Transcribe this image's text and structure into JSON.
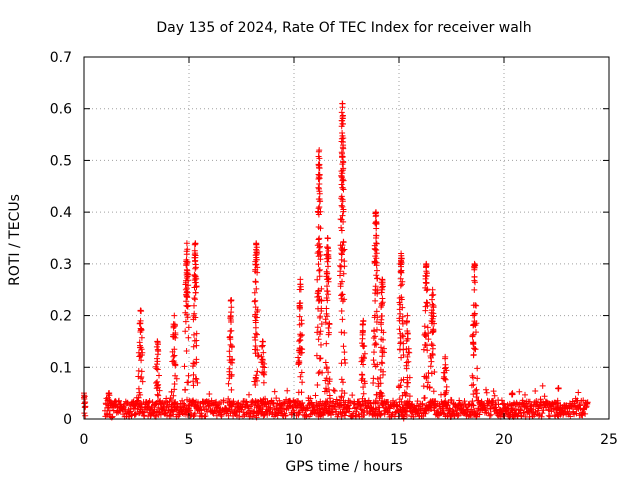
{
  "chart_data": {
    "type": "scatter",
    "title": "Day 135 of 2024, Rate Of TEC Index for receiver walh",
    "xlabel": "GPS time / hours",
    "ylabel": "ROTI / TECUs",
    "xlim": [
      0,
      25
    ],
    "ylim": [
      0,
      0.7
    ],
    "xticks": [
      0,
      5,
      10,
      15,
      20,
      25
    ],
    "xtick_labels": [
      "0",
      "5",
      "10",
      "15",
      "20",
      "25"
    ],
    "yticks": [
      0,
      0.1,
      0.2,
      0.3,
      0.4,
      0.5,
      0.6,
      0.7
    ],
    "ytick_labels": [
      "0",
      "0.1",
      "0.2",
      "0.3",
      "0.4",
      "0.5",
      "0.6",
      "0.7"
    ],
    "grid": true,
    "marker": "+",
    "color": "#ff0000",
    "data_time_range_hours": [
      0,
      24
    ],
    "baseline_level": 0.02,
    "spikes": [
      {
        "x": 0.0,
        "peak": 0.05
      },
      {
        "x": 1.2,
        "peak": 0.05
      },
      {
        "x": 2.7,
        "peak": 0.21
      },
      {
        "x": 3.5,
        "peak": 0.15
      },
      {
        "x": 4.3,
        "peak": 0.2
      },
      {
        "x": 4.9,
        "peak": 0.34
      },
      {
        "x": 5.3,
        "peak": 0.34
      },
      {
        "x": 7.0,
        "peak": 0.23
      },
      {
        "x": 8.2,
        "peak": 0.34
      },
      {
        "x": 8.5,
        "peak": 0.15
      },
      {
        "x": 10.3,
        "peak": 0.27
      },
      {
        "x": 11.2,
        "peak": 0.52
      },
      {
        "x": 11.6,
        "peak": 0.35
      },
      {
        "x": 12.3,
        "peak": 0.61
      },
      {
        "x": 13.3,
        "peak": 0.19
      },
      {
        "x": 13.9,
        "peak": 0.4
      },
      {
        "x": 14.2,
        "peak": 0.27
      },
      {
        "x": 15.1,
        "peak": 0.32
      },
      {
        "x": 15.4,
        "peak": 0.2
      },
      {
        "x": 16.3,
        "peak": 0.3
      },
      {
        "x": 16.6,
        "peak": 0.25
      },
      {
        "x": 17.2,
        "peak": 0.12
      },
      {
        "x": 18.6,
        "peak": 0.3
      },
      {
        "x": 20.4,
        "peak": 0.05
      },
      {
        "x": 22.6,
        "peak": 0.06
      }
    ]
  }
}
